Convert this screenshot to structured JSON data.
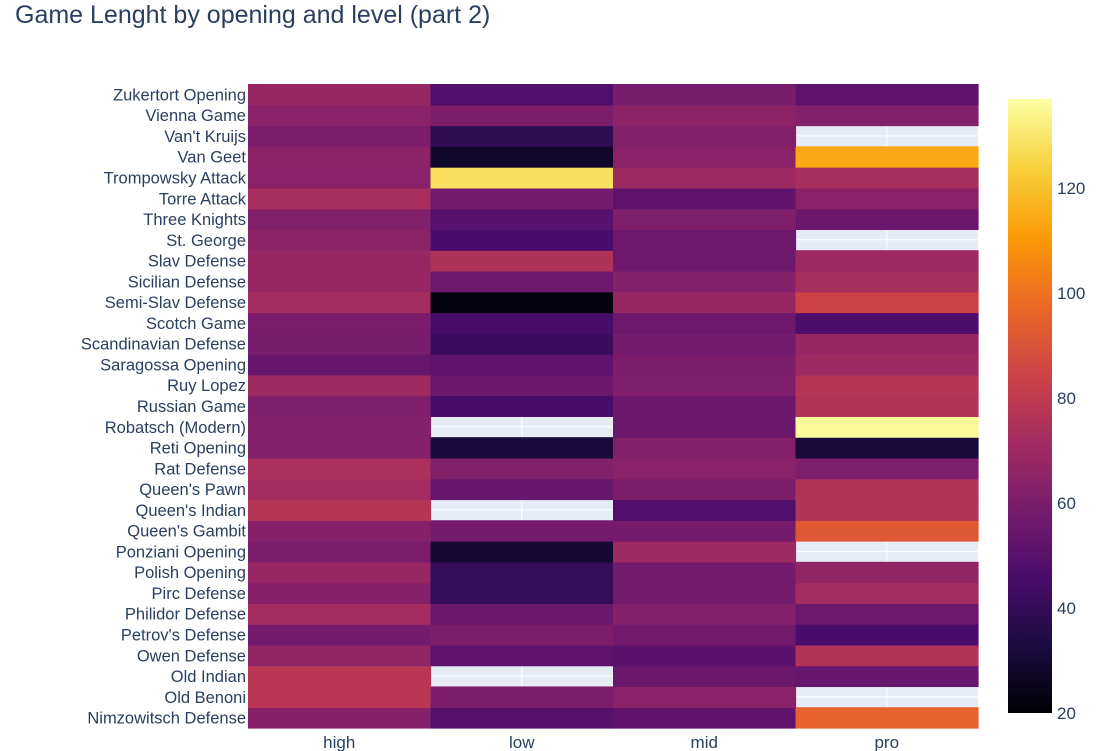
{
  "chart_data": {
    "type": "heatmap",
    "title": "Game Lenght by opening and level (part 2)",
    "x": [
      "high",
      "low",
      "mid",
      "pro"
    ],
    "y": [
      "Nimzowitsch Defense",
      "Old Benoni",
      "Old Indian",
      "Owen Defense",
      "Petrov's Defense",
      "Philidor Defense",
      "Pirc Defense",
      "Polish Opening",
      "Ponziani Opening",
      "Queen's Gambit",
      "Queen's Indian",
      "Queen's Pawn",
      "Rat Defense",
      "Reti Opening",
      "Robatsch (Modern)",
      "Russian Game",
      "Ruy Lopez",
      "Saragossa Opening",
      "Scandinavian Defense",
      "Scotch Game",
      "Semi-Slav Defense",
      "Sicilian Defense",
      "Slav Defense",
      "St. George",
      "Three Knights",
      "Torre Attack",
      "Trompowsky Attack",
      "Van Geet",
      "Van't Kruijs",
      "Vienna Game",
      "Zukertort Opening"
    ],
    "z": [
      [
        63,
        50,
        52,
        95
      ],
      [
        78,
        60,
        64,
        null
      ],
      [
        78,
        null,
        55,
        54
      ],
      [
        66,
        52,
        51,
        76
      ],
      [
        58,
        60,
        57,
        46
      ],
      [
        72,
        55,
        62,
        56
      ],
      [
        63,
        40,
        58,
        72
      ],
      [
        68,
        40,
        58,
        66
      ],
      [
        60,
        30,
        70,
        null
      ],
      [
        63,
        58,
        58,
        92
      ],
      [
        77,
        null,
        48,
        76
      ],
      [
        72,
        54,
        60,
        76
      ],
      [
        74,
        62,
        64,
        61
      ],
      [
        62,
        32,
        62,
        31
      ],
      [
        62,
        null,
        55,
        136
      ],
      [
        61,
        45,
        55,
        76
      ],
      [
        70,
        55,
        61,
        77
      ],
      [
        54,
        52,
        60,
        70
      ],
      [
        59,
        42,
        58,
        68
      ],
      [
        60,
        45,
        56,
        47
      ],
      [
        72,
        22,
        68,
        84
      ],
      [
        68,
        56,
        62,
        73
      ],
      [
        68,
        75,
        56,
        70
      ],
      [
        65,
        46,
        56,
        null
      ],
      [
        62,
        50,
        61,
        55
      ],
      [
        73,
        58,
        52,
        64
      ],
      [
        64,
        128,
        70,
        73
      ],
      [
        65,
        28,
        64,
        114
      ],
      [
        60,
        38,
        62,
        null
      ],
      [
        64,
        60,
        65,
        62
      ],
      [
        68,
        48,
        59,
        52
      ]
    ],
    "zmin": 20,
    "zmax": 137,
    "colorscale": "Inferno",
    "colorbar_ticks": [
      20,
      40,
      60,
      80,
      100,
      120
    ],
    "missing_color": "#e5ecf6"
  }
}
